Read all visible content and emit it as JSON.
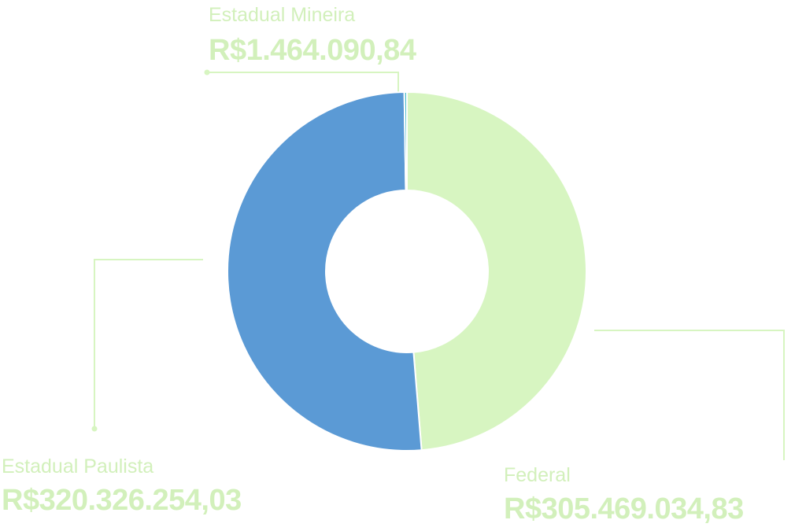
{
  "chart_data": {
    "type": "donut",
    "categories": [
      "Federal",
      "Estadual Paulista",
      "Estadual Mineira"
    ],
    "values": [
      305469034.83,
      320326254.03,
      1464090.84
    ],
    "value_labels": [
      "R$305.469.034,83",
      "R$320.326.254,03",
      "R$1.464.090,84"
    ],
    "colors": [
      "#d7f5c1",
      "#5b9ad5",
      "#4fbdcc"
    ]
  }
}
